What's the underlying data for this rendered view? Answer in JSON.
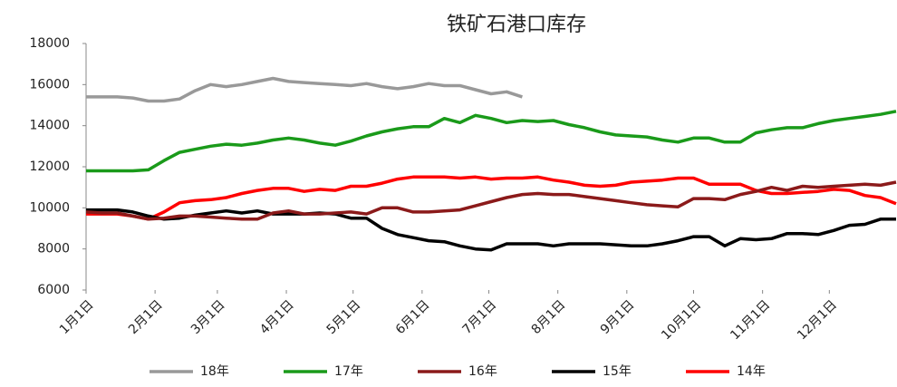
{
  "chart_data": {
    "type": "line",
    "title": "铁矿石港口库存",
    "x": [
      1,
      8,
      15,
      22,
      29,
      36,
      43,
      50,
      57,
      64,
      71,
      78,
      85,
      92,
      99,
      106,
      113,
      120,
      127,
      134,
      141,
      148,
      155,
      162,
      169,
      176,
      183,
      190,
      197,
      204,
      211,
      218,
      225,
      232,
      239,
      246,
      253,
      260,
      267,
      274,
      281,
      288,
      295,
      302,
      309,
      316,
      323,
      330,
      337,
      344,
      351,
      358,
      365
    ],
    "xlim": [
      1,
      365
    ],
    "xticks": [
      {
        "value": 1,
        "label": "1月1日"
      },
      {
        "value": 32,
        "label": "2月1日"
      },
      {
        "value": 60,
        "label": "3月1日"
      },
      {
        "value": 91,
        "label": "4月1日"
      },
      {
        "value": 121,
        "label": "5月1日"
      },
      {
        "value": 152,
        "label": "6月1日"
      },
      {
        "value": 182,
        "label": "7月1日"
      },
      {
        "value": 213,
        "label": "8月1日"
      },
      {
        "value": 244,
        "label": "9月1日"
      },
      {
        "value": 274,
        "label": "10月1日"
      },
      {
        "value": 305,
        "label": "11月1日"
      },
      {
        "value": 335,
        "label": "12月1日"
      }
    ],
    "ylim": [
      6000,
      18000
    ],
    "yticks": [
      6000,
      8000,
      10000,
      12000,
      14000,
      16000,
      18000
    ],
    "legend": "bottom",
    "series": [
      {
        "name": "18年",
        "color": "#999999",
        "values": [
          15400,
          15400,
          15400,
          15350,
          15200,
          15200,
          15300,
          15700,
          16000,
          15900,
          16000,
          16150,
          16300,
          16150,
          16100,
          16050,
          16000,
          15950,
          16050,
          15900,
          15800,
          15900,
          16050,
          15950,
          15950,
          15750,
          15550,
          15650,
          15400,
          null,
          null,
          null,
          null,
          null,
          null,
          null,
          null,
          null,
          null,
          null,
          null,
          null,
          null,
          null,
          null,
          null,
          null,
          null,
          null,
          null,
          null,
          null,
          null
        ]
      },
      {
        "name": "17年",
        "color": "#1a9a1a",
        "values": [
          11800,
          11800,
          11800,
          11800,
          11850,
          12300,
          12700,
          12850,
          13000,
          13100,
          13050,
          13150,
          13300,
          13400,
          13300,
          13150,
          13050,
          13250,
          13500,
          13700,
          13850,
          13950,
          13950,
          14350,
          14150,
          14500,
          14350,
          14150,
          14250,
          14200,
          14250,
          14050,
          13900,
          13700,
          13550,
          13500,
          13450,
          13300,
          13200,
          13400,
          13400,
          13200,
          13200,
          13650,
          13800,
          13900,
          13900,
          14100,
          14250,
          14350,
          14450,
          14550,
          14700
        ]
      },
      {
        "name": "16年",
        "color": "#8b1a1a",
        "values": [
          9800,
          9750,
          9750,
          9600,
          9450,
          9500,
          9600,
          9600,
          9550,
          9500,
          9450,
          9450,
          9750,
          9850,
          9700,
          9700,
          9750,
          9800,
          9700,
          10000,
          10000,
          9800,
          9800,
          9850,
          9900,
          10100,
          10300,
          10500,
          10650,
          10700,
          10650,
          10650,
          10550,
          10450,
          10350,
          10250,
          10150,
          10100,
          10050,
          10450,
          10450,
          10400,
          10650,
          10800,
          11000,
          10850,
          11050,
          11000,
          11050,
          11100,
          11150,
          11100,
          11250
        ]
      },
      {
        "name": "15年",
        "color": "#000000",
        "values": [
          9900,
          9900,
          9900,
          9800,
          9600,
          9450,
          9500,
          9650,
          9750,
          9850,
          9750,
          9850,
          9700,
          9700,
          9700,
          9750,
          9700,
          9500,
          9500,
          9000,
          8700,
          8550,
          8400,
          8350,
          8150,
          8000,
          7950,
          8250,
          8250,
          8250,
          8150,
          8250,
          8250,
          8250,
          8200,
          8150,
          8150,
          8250,
          8400,
          8600,
          8600,
          8150,
          8500,
          8450,
          8500,
          8750,
          8750,
          8700,
          8900,
          9150,
          9200,
          9450,
          9450
        ]
      },
      {
        "name": "14年",
        "color": "#ff0000",
        "values": [
          9700,
          9700,
          9700,
          9600,
          9450,
          9800,
          10250,
          10350,
          10400,
          10500,
          10700,
          10850,
          10950,
          10950,
          10800,
          10900,
          10850,
          11050,
          11050,
          11200,
          11400,
          11500,
          11500,
          11500,
          11450,
          11500,
          11400,
          11450,
          11450,
          11500,
          11350,
          11250,
          11100,
          11050,
          11100,
          11250,
          11300,
          11350,
          11450,
          11450,
          11150,
          11150,
          11150,
          10850,
          10700,
          10700,
          10750,
          10800,
          10900,
          10850,
          10600,
          10500,
          10200
        ]
      }
    ]
  }
}
